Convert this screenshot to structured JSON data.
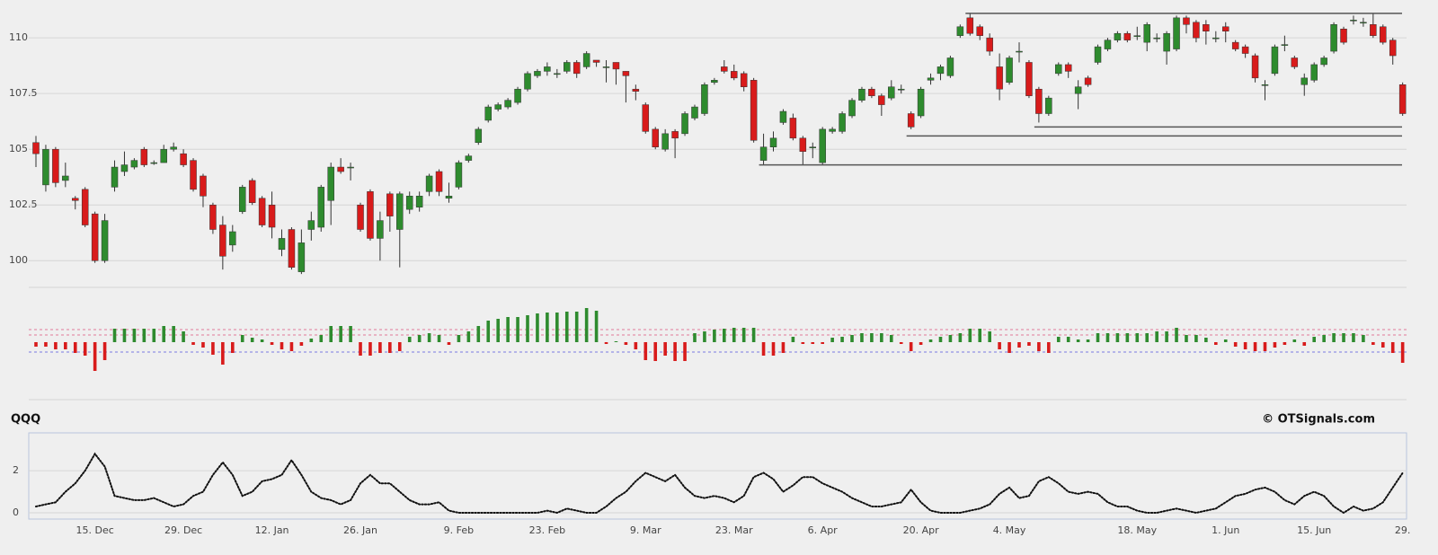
{
  "chart_data": [
    {
      "type": "candlestick",
      "up_color": "#2e8b2e",
      "down_color": "#d81b1b",
      "wick_color": "#333333",
      "ylim": [
        98.8,
        111.7
      ],
      "yticks": [
        100,
        102.5,
        105,
        107.5,
        110
      ],
      "grid": true,
      "levels": [
        {
          "value": 111.1,
          "from": 95
        },
        {
          "value": 106,
          "from": 102
        },
        {
          "value": 105.6,
          "from": 89
        },
        {
          "value": 104.3,
          "from": 74
        }
      ],
      "open": [
        105.3,
        103.4,
        105,
        103.6,
        102.8,
        103.2,
        102.1,
        100,
        103.3,
        104,
        104.2,
        105,
        104.4,
        104.4,
        105,
        104.8,
        104.5,
        103.8,
        102.5,
        101.6,
        100.7,
        102.2,
        103.6,
        102.8,
        102.5,
        100.5,
        101.4,
        99.5,
        101.4,
        101.5,
        102.7,
        104.2,
        104.2,
        102.5,
        103.1,
        101,
        103,
        101.4,
        102.3,
        102.4,
        103.1,
        104,
        102.8,
        103.3,
        104.5,
        105.3,
        106.3,
        106.8,
        106.9,
        107.1,
        107.7,
        108.3,
        108.5,
        108.4,
        108.5,
        108.9,
        108.7,
        109,
        108.7,
        108.9,
        108.5,
        107.7,
        107,
        105.9,
        105,
        105.8,
        105.7,
        106.4,
        106.6,
        108,
        108.7,
        108.5,
        108.4,
        108.1,
        104.5,
        105.1,
        106.2,
        106.4,
        105.5,
        105.1,
        104.4,
        105.8,
        105.8,
        106.5,
        107.2,
        107.7,
        107.4,
        107.3,
        107.7,
        106.6,
        106.5,
        108.1,
        108.4,
        108.3,
        110.1,
        110.9,
        110.5,
        110,
        108.7,
        108,
        109.4,
        108.9,
        107.7,
        106.6,
        108.4,
        108.8,
        107.5,
        108.2,
        108.9,
        109.5,
        109.9,
        110.2,
        110.1,
        109.8,
        110,
        109.4,
        109.5,
        110.9,
        110.7,
        110.6,
        110,
        110.5,
        109.8,
        109.6,
        109.2,
        107.9,
        108.4,
        109.7,
        109.1,
        107.9,
        108.1,
        108.8,
        109.4,
        110.4,
        110.8,
        110.7,
        110.6,
        110.5,
        109.9,
        107.9
      ],
      "high": [
        105.6,
        105.2,
        105.1,
        104.4,
        102.9,
        103.3,
        102.2,
        102.1,
        104.5,
        104.9,
        104.6,
        105.1,
        104.5,
        105.2,
        105.3,
        105,
        104.6,
        103.9,
        102.6,
        102,
        101.6,
        103.4,
        103.7,
        102.9,
        103.1,
        101.4,
        101.5,
        101.4,
        102.2,
        103.4,
        104.4,
        104.6,
        104.4,
        102.6,
        103.2,
        102.2,
        103.1,
        103.1,
        103.1,
        103.1,
        103.9,
        104.1,
        103.5,
        104.5,
        104.8,
        106,
        107,
        107.1,
        107.3,
        107.8,
        108.5,
        108.6,
        108.9,
        108.6,
        109,
        109,
        109.4,
        109,
        109,
        108.9,
        108.5,
        107.9,
        107.1,
        106,
        105.9,
        105.9,
        106.7,
        107,
        108,
        108.2,
        109,
        108.8,
        108.5,
        108.2,
        105.7,
        105.8,
        106.8,
        106.6,
        105.6,
        105.3,
        106,
        106,
        106.7,
        107.3,
        107.8,
        107.8,
        107.5,
        108.1,
        107.9,
        106.7,
        107.8,
        108.4,
        108.8,
        109.2,
        110.6,
        111.1,
        110.6,
        110.2,
        109.3,
        109.2,
        109.8,
        109,
        107.8,
        107.4,
        108.9,
        108.9,
        108.1,
        108.3,
        109.7,
        110,
        110.3,
        110.3,
        110.5,
        110.7,
        110.2,
        110.3,
        111,
        111,
        110.8,
        110.8,
        110.3,
        110.7,
        109.9,
        109.7,
        109.3,
        108.1,
        109.7,
        110.1,
        109.2,
        108.4,
        108.9,
        109.2,
        110.7,
        110.5,
        111,
        110.9,
        111.1,
        110.6,
        110,
        108
      ],
      "low": [
        104.2,
        103.1,
        103.3,
        103.3,
        102.3,
        101.5,
        99.9,
        99.9,
        103.1,
        103.8,
        104.1,
        104.2,
        104.3,
        104.4,
        104.9,
        104.2,
        103.1,
        102.4,
        101.2,
        99.6,
        100.4,
        102.1,
        102.5,
        101.5,
        101,
        100.2,
        99.6,
        99.4,
        100.9,
        101.3,
        101.6,
        103.9,
        103.6,
        101.3,
        100.9,
        100,
        101.3,
        99.7,
        102.1,
        102.2,
        102.9,
        102.9,
        102.6,
        103.2,
        104.4,
        105.2,
        106.2,
        106.7,
        106.8,
        107,
        107.6,
        108.2,
        108.3,
        108.2,
        108.4,
        108.2,
        108.6,
        108.7,
        108,
        107.9,
        107.1,
        107.2,
        105.7,
        105,
        104.9,
        104.6,
        105.6,
        106.3,
        106.5,
        107.9,
        108.4,
        108.1,
        107.6,
        105.3,
        104.3,
        104.9,
        106.1,
        105.4,
        104.3,
        104.6,
        104.3,
        105.7,
        105.7,
        106.4,
        107.1,
        107.3,
        106.5,
        107.2,
        107.5,
        105.9,
        106.4,
        107.9,
        108.1,
        108.2,
        110,
        110.1,
        109.9,
        109.2,
        107.2,
        107.9,
        108.9,
        107.3,
        106.2,
        106.5,
        108.3,
        108.2,
        106.8,
        107.8,
        108.8,
        109.4,
        109.8,
        109.8,
        109.9,
        109.4,
        109.8,
        108.8,
        109.4,
        110.2,
        109.8,
        109.7,
        109.8,
        109.8,
        109.4,
        109.1,
        108,
        107.2,
        108.3,
        109.4,
        108.6,
        107.4,
        108,
        108.7,
        109.3,
        109.7,
        110.6,
        110.5,
        110,
        109.7,
        108.8,
        106.5
      ],
      "close": [
        104.8,
        105,
        103.5,
        103.8,
        102.7,
        101.6,
        100,
        101.8,
        104.2,
        104.3,
        104.5,
        104.3,
        104.4,
        105,
        105.1,
        104.3,
        103.2,
        102.9,
        101.4,
        100.2,
        101.3,
        103.3,
        102.6,
        101.6,
        101.5,
        101,
        99.7,
        100.8,
        101.8,
        103.3,
        104.2,
        104,
        104.2,
        101.4,
        101,
        101.8,
        102,
        103,
        102.9,
        102.9,
        103.8,
        103.1,
        102.9,
        104.4,
        104.7,
        105.9,
        106.9,
        107,
        107.2,
        107.7,
        108.4,
        108.5,
        108.7,
        108.4,
        108.9,
        108.4,
        109.3,
        108.9,
        108.7,
        108.6,
        108.3,
        107.6,
        105.8,
        105.1,
        105.7,
        105.5,
        106.6,
        106.9,
        107.9,
        108.1,
        108.5,
        108.2,
        107.8,
        105.4,
        105.1,
        105.5,
        106.7,
        105.5,
        104.9,
        105.1,
        105.9,
        105.9,
        106.6,
        107.2,
        107.7,
        107.4,
        107,
        107.8,
        107.7,
        106,
        107.7,
        108.2,
        108.7,
        109.1,
        110.5,
        110.2,
        110.1,
        109.4,
        107.7,
        109.1,
        109.4,
        107.4,
        106.6,
        107.3,
        108.8,
        108.5,
        107.8,
        107.9,
        109.6,
        109.9,
        110.2,
        109.9,
        110.1,
        110.6,
        110,
        110.2,
        110.9,
        110.6,
        110,
        110.3,
        110,
        110.3,
        109.5,
        109.3,
        108.2,
        107.9,
        109.6,
        109.7,
        108.7,
        108.2,
        108.8,
        109.1,
        110.6,
        109.8,
        110.8,
        110.7,
        110.1,
        109.8,
        109.2,
        106.6
      ]
    },
    {
      "type": "bar",
      "up_color": "#2e8b2e",
      "down_color": "#d81b1b",
      "ylim": [
        -6.4,
        4.6
      ],
      "levels": [
        {
          "value": 1.4,
          "color": "#e07a9a"
        },
        {
          "value": 0.8,
          "color": "#e07a9a"
        },
        {
          "value": -1.1,
          "color": "#7a7ae0"
        }
      ],
      "values": [
        -0.5,
        -0.5,
        -0.8,
        -0.8,
        -1.2,
        -1.5,
        -3.2,
        -2,
        1.5,
        1.5,
        1.5,
        1.5,
        1.5,
        1.8,
        1.8,
        1.2,
        -0.3,
        -0.6,
        -1.4,
        -2.5,
        -1.2,
        0.8,
        0.5,
        0.3,
        -0.3,
        -0.8,
        -1,
        -0.4,
        0.4,
        0.8,
        1.8,
        1.8,
        1.8,
        -1.5,
        -1.5,
        -1.2,
        -1.2,
        -1,
        0.6,
        0.8,
        1,
        0.8,
        -0.3,
        0.8,
        1.2,
        1.8,
        2.4,
        2.6,
        2.8,
        2.8,
        3,
        3.2,
        3.3,
        3.3,
        3.4,
        3.4,
        3.8,
        3.5,
        -0.2,
        0.1,
        -0.3,
        -0.8,
        -2,
        -2.1,
        -1.5,
        -2.1,
        -2.1,
        1,
        1.2,
        1.4,
        1.5,
        1.6,
        1.6,
        1.6,
        -1.5,
        -1.5,
        -1.2,
        0.6,
        -0.2,
        -0.2,
        -0.2,
        0.5,
        0.6,
        0.8,
        1,
        1,
        1,
        0.8,
        -0.2,
        -1,
        -0.3,
        0.3,
        0.6,
        0.8,
        1,
        1.5,
        1.5,
        1.2,
        -0.8,
        -1.2,
        -0.6,
        -0.4,
        -1,
        -1.2,
        0.6,
        0.6,
        0.3,
        0.3,
        1,
        1,
        1,
        1,
        1,
        1,
        1.2,
        1.2,
        1.6,
        0.8,
        0.8,
        0.5,
        -0.3,
        0.3,
        -0.5,
        -0.8,
        -1,
        -1,
        -0.6,
        -0.3,
        0.3,
        -0.4,
        0.6,
        0.8,
        1,
        1,
        1,
        0.8,
        -0.3,
        -0.6,
        -1.2,
        -2.3
      ]
    },
    {
      "type": "line",
      "title": "QQQ",
      "credit": "© OTSignals.com",
      "color": "#111111",
      "ylim": [
        -0.3,
        3.8
      ],
      "yticks": [
        0,
        2
      ],
      "grid": true,
      "categories": [
        null,
        null,
        null,
        null,
        null,
        null,
        "15. Dec",
        null,
        null,
        null,
        null,
        null,
        null,
        null,
        null,
        "29. Dec",
        null,
        null,
        null,
        null,
        null,
        null,
        null,
        null,
        "12. Jan",
        null,
        null,
        null,
        null,
        null,
        null,
        null,
        null,
        "26. Jan",
        null,
        null,
        null,
        null,
        null,
        null,
        null,
        null,
        null,
        "9. Feb",
        null,
        null,
        null,
        null,
        null,
        null,
        null,
        null,
        "23. Feb",
        null,
        null,
        null,
        null,
        null,
        null,
        null,
        null,
        null,
        "9. Mar",
        null,
        null,
        null,
        null,
        null,
        null,
        null,
        null,
        "23. Mar",
        null,
        null,
        null,
        null,
        null,
        null,
        null,
        null,
        "6. Apr",
        null,
        null,
        null,
        null,
        null,
        null,
        null,
        null,
        null,
        "20. Apr",
        null,
        null,
        null,
        null,
        null,
        null,
        null,
        null,
        "4. May",
        null,
        null,
        null,
        null,
        null,
        null,
        null,
        null,
        null,
        null,
        null,
        null,
        "18. May",
        null,
        null,
        null,
        null,
        null,
        null,
        null,
        null,
        "1. Jun",
        null,
        null,
        null,
        null,
        null,
        null,
        null,
        null,
        "15. Jun",
        null,
        null,
        null,
        null,
        null,
        null,
        null,
        null,
        "29."
      ],
      "values": [
        0.3,
        0.4,
        0.5,
        1,
        1.4,
        2,
        2.8,
        2.2,
        0.8,
        0.7,
        0.6,
        0.6,
        0.7,
        0.5,
        0.3,
        0.4,
        0.8,
        1,
        1.8,
        2.4,
        1.8,
        0.8,
        1,
        1.5,
        1.6,
        1.8,
        2.5,
        1.8,
        1,
        0.7,
        0.6,
        0.4,
        0.6,
        1.4,
        1.8,
        1.4,
        1.4,
        1,
        0.6,
        0.4,
        0.4,
        0.5,
        0.1,
        0,
        0,
        0,
        0,
        0,
        0,
        0,
        0,
        0,
        0.1,
        0,
        0.2,
        0.1,
        0,
        0,
        0.3,
        0.7,
        1,
        1.5,
        1.9,
        1.7,
        1.5,
        1.8,
        1.2,
        0.8,
        0.7,
        0.8,
        0.7,
        0.5,
        0.8,
        1.7,
        1.9,
        1.6,
        1,
        1.3,
        1.7,
        1.7,
        1.4,
        1.2,
        1,
        0.7,
        0.5,
        0.3,
        0.3,
        0.4,
        0.5,
        1.1,
        0.5,
        0.1,
        0,
        0,
        0,
        0.1,
        0.2,
        0.4,
        0.9,
        1.2,
        0.7,
        0.8,
        1.5,
        1.7,
        1.4,
        1,
        0.9,
        1,
        0.9,
        0.5,
        0.3,
        0.3,
        0.1,
        0,
        0,
        0.1,
        0.2,
        0.1,
        0,
        0.1,
        0.2,
        0.5,
        0.8,
        0.9,
        1.1,
        1.2,
        1,
        0.6,
        0.4,
        0.8,
        1,
        0.8,
        0.3,
        0,
        0.3,
        0.1,
        0.2,
        0.5,
        1.2,
        1.9
      ]
    }
  ]
}
